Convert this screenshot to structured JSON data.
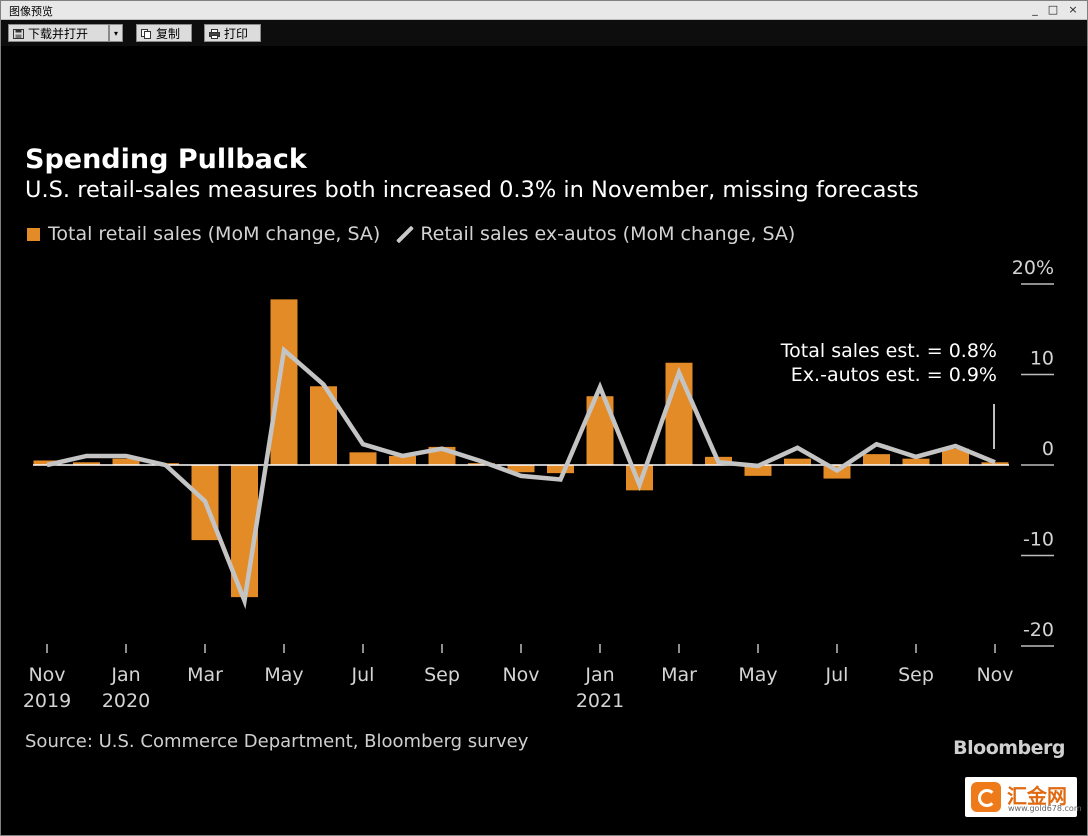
{
  "window": {
    "title": "图像预览",
    "minimize_glyph": "_",
    "maximize_glyph": "□",
    "close_glyph": "×"
  },
  "toolbar": {
    "download_label": "下载并打开",
    "copy_label": "复制",
    "print_label": "打印",
    "dropdown_glyph": "▾"
  },
  "chart_data": {
    "type": "bar",
    "title": "Spending Pullback",
    "subtitle": "U.S. retail-sales measures both increased 0.3% in November, missing forecasts",
    "series": [
      {
        "name": "Total retail sales (MoM change, SA)",
        "type": "bar",
        "color": "#e38b27",
        "values": [
          0.5,
          0.3,
          0.7,
          0.2,
          -8.3,
          -14.6,
          18.3,
          8.7,
          1.4,
          1.0,
          2.0,
          0.2,
          -0.8,
          -0.9,
          7.6,
          -2.8,
          11.3,
          0.9,
          -1.2,
          0.7,
          -1.5,
          1.2,
          0.7,
          1.8,
          0.3
        ]
      },
      {
        "name": "Retail sales ex-autos (MoM change, SA)",
        "type": "line",
        "color": "#c4c4c4",
        "values": [
          0.0,
          1.0,
          1.0,
          0.0,
          -4.0,
          -15.0,
          12.7,
          8.9,
          2.3,
          1.0,
          1.8,
          0.4,
          -1.2,
          -1.6,
          8.6,
          -2.2,
          10.2,
          0.3,
          -0.1,
          1.9,
          -0.6,
          2.3,
          0.9,
          2.1,
          0.3
        ]
      }
    ],
    "months": [
      "2019-11",
      "2019-12",
      "2020-01",
      "2020-02",
      "2020-03",
      "2020-04",
      "2020-05",
      "2020-06",
      "2020-07",
      "2020-08",
      "2020-09",
      "2020-10",
      "2020-11",
      "2020-12",
      "2021-01",
      "2021-02",
      "2021-03",
      "2021-04",
      "2021-05",
      "2021-06",
      "2021-07",
      "2021-08",
      "2021-09",
      "2021-10",
      "2021-11"
    ],
    "x_tick_labels": [
      {
        "month": "2019-11",
        "label": "Nov",
        "sub": "2019"
      },
      {
        "month": "2020-01",
        "label": "Jan",
        "sub": "2020"
      },
      {
        "month": "2020-03",
        "label": "Mar",
        "sub": ""
      },
      {
        "month": "2020-05",
        "label": "May",
        "sub": ""
      },
      {
        "month": "2020-07",
        "label": "Jul",
        "sub": ""
      },
      {
        "month": "2020-09",
        "label": "Sep",
        "sub": ""
      },
      {
        "month": "2020-11",
        "label": "Nov",
        "sub": ""
      },
      {
        "month": "2021-01",
        "label": "Jan",
        "sub": "2021"
      },
      {
        "month": "2021-03",
        "label": "Mar",
        "sub": ""
      },
      {
        "month": "2021-05",
        "label": "May",
        "sub": ""
      },
      {
        "month": "2021-07",
        "label": "Jul",
        "sub": ""
      },
      {
        "month": "2021-09",
        "label": "Sep",
        "sub": ""
      },
      {
        "month": "2021-11",
        "label": "Nov",
        "sub": ""
      }
    ],
    "y_ticks": [
      {
        "value": 20,
        "label": "20%"
      },
      {
        "value": 10,
        "label": "10"
      },
      {
        "value": 0,
        "label": "0"
      },
      {
        "value": -10,
        "label": "-10"
      },
      {
        "value": -20,
        "label": "-20"
      }
    ],
    "ylim": [
      -20,
      20
    ],
    "y_axis_side": "right",
    "grid": false,
    "legend_position": "top-left",
    "annotation": {
      "line1": "Total sales est. = 0.8%",
      "line2": "Ex.-autos est. = 0.9%"
    },
    "source": "Source: U.S. Commerce Department, Bloomberg survey",
    "brand": "Bloomberg"
  },
  "watermark": {
    "brand": "汇金网",
    "url": "www.gold678.com"
  }
}
